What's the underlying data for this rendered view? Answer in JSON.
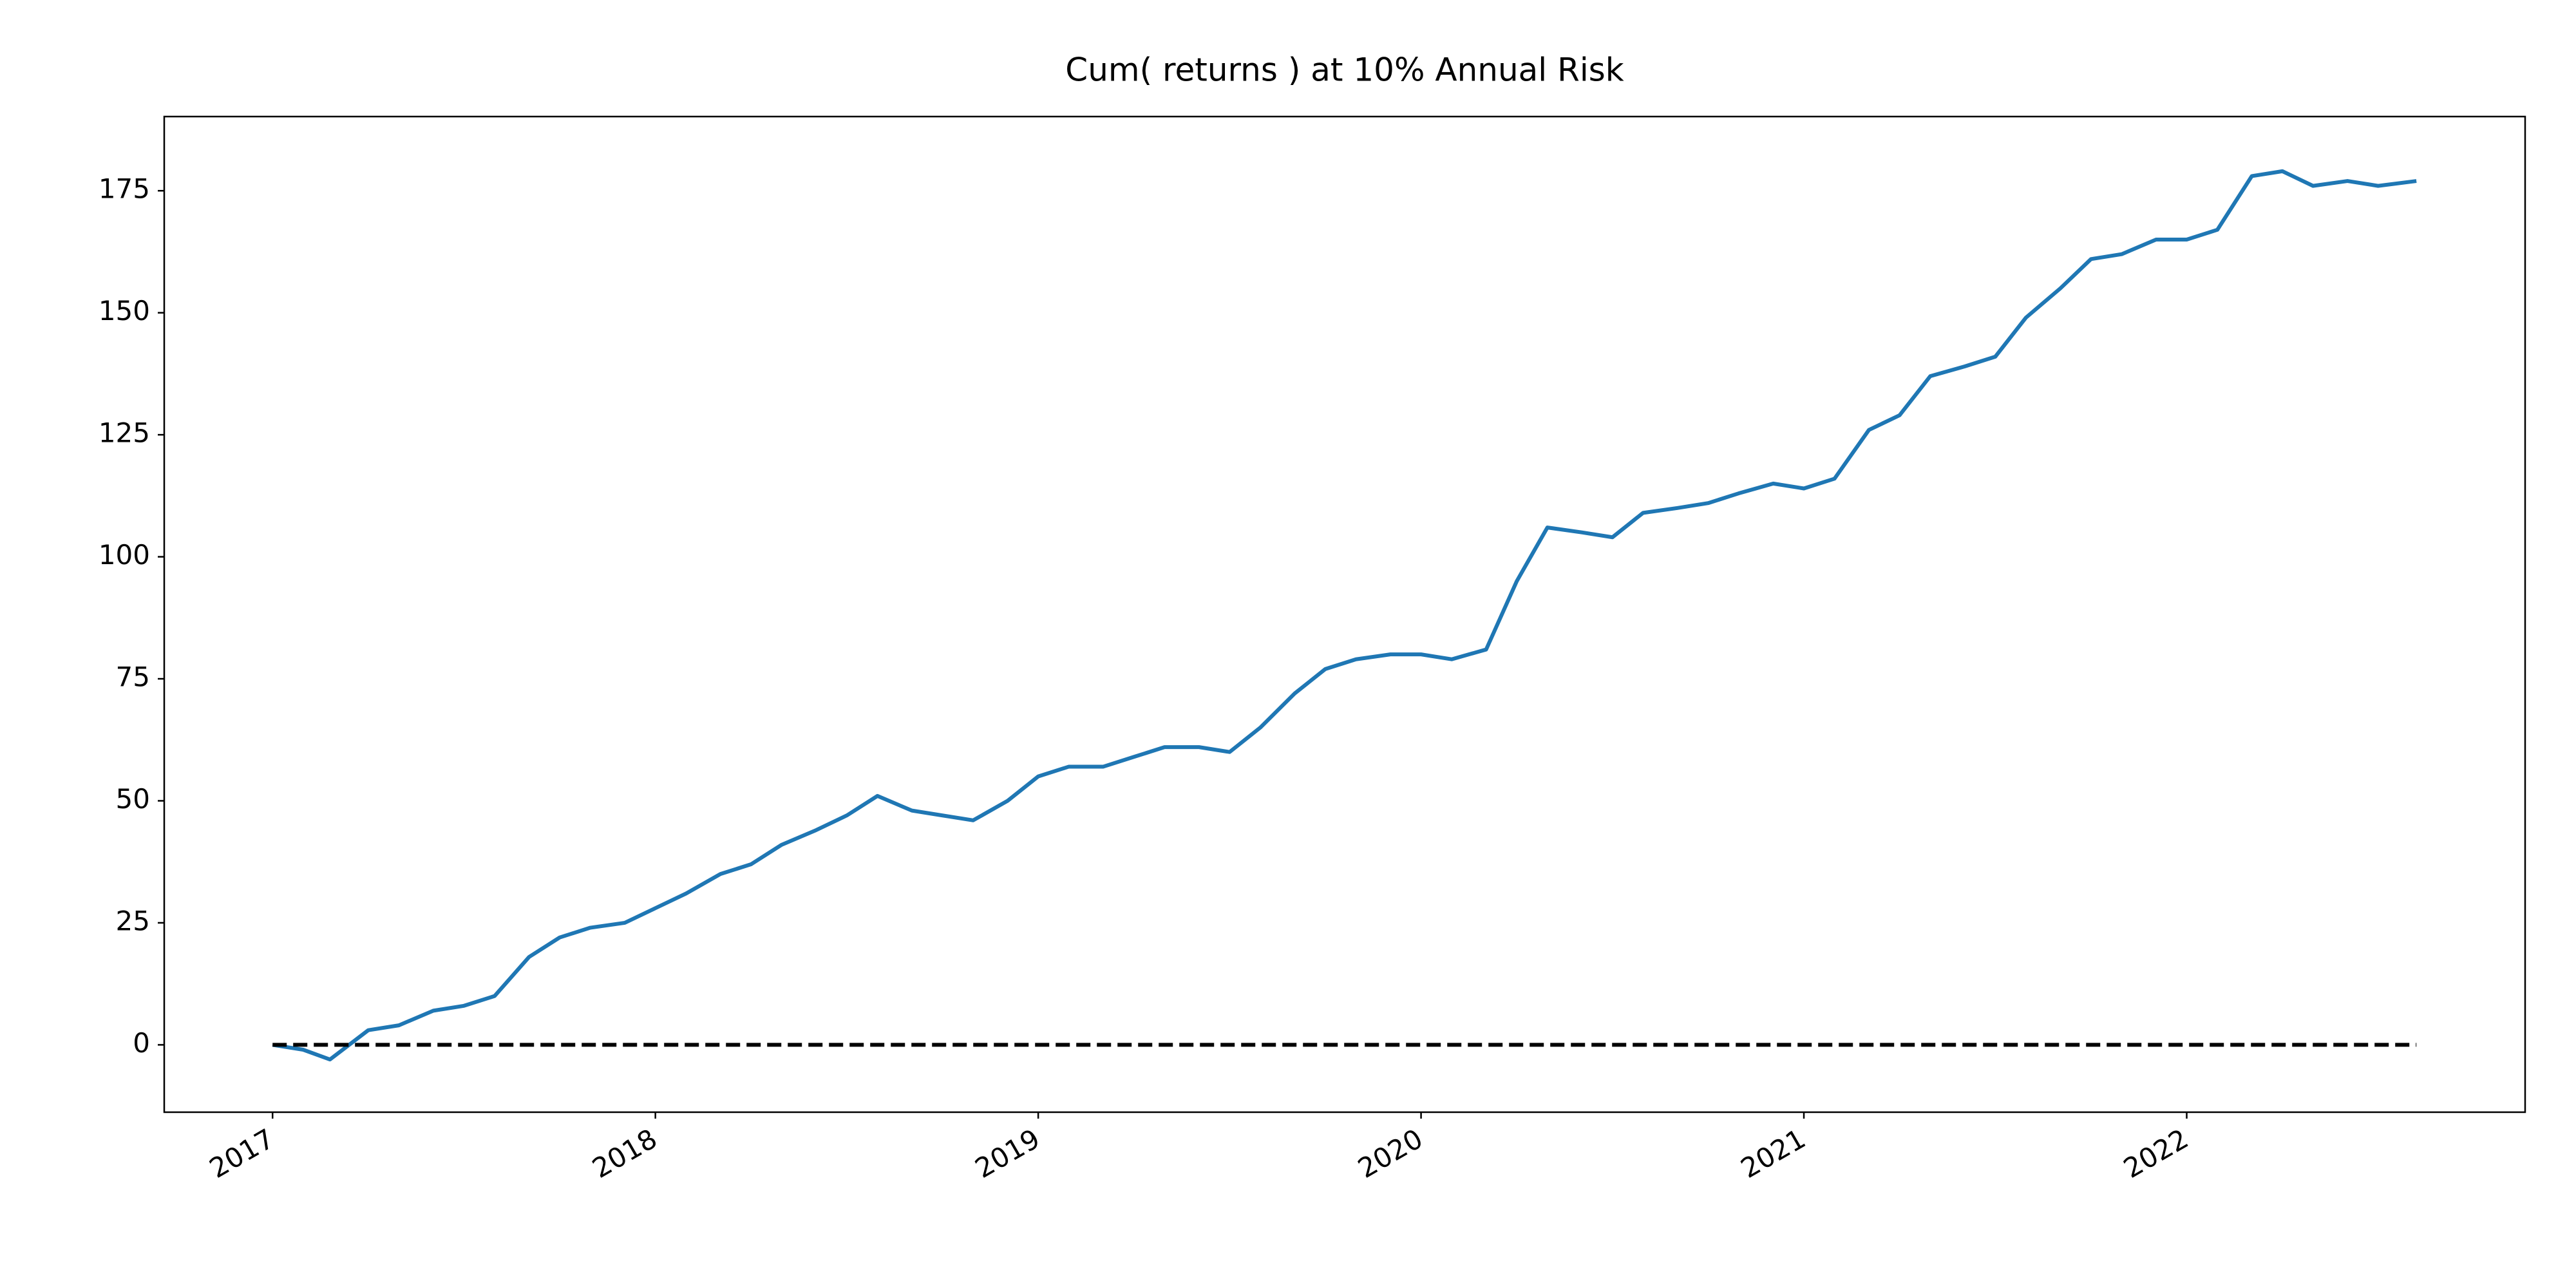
{
  "chart_data": {
    "type": "line",
    "title": "Cum( returns ) at 10% Annual Risk",
    "series": [
      {
        "color": "#1f77b4",
        "linestyle": "solid",
        "x": [
          2017.0,
          2017.08,
          2017.15,
          2017.25,
          2017.33,
          2017.42,
          2017.5,
          2017.58,
          2017.67,
          2017.75,
          2017.83,
          2017.92,
          2018.0,
          2018.08,
          2018.17,
          2018.25,
          2018.33,
          2018.42,
          2018.5,
          2018.58,
          2018.67,
          2018.75,
          2018.83,
          2018.92,
          2019.0,
          2019.08,
          2019.17,
          2019.25,
          2019.33,
          2019.42,
          2019.5,
          2019.58,
          2019.67,
          2019.75,
          2019.83,
          2019.92,
          2020.0,
          2020.08,
          2020.17,
          2020.25,
          2020.33,
          2020.42,
          2020.5,
          2020.58,
          2020.67,
          2020.75,
          2020.83,
          2020.92,
          2021.0,
          2021.08,
          2021.17,
          2021.25,
          2021.33,
          2021.42,
          2021.5,
          2021.58,
          2021.67,
          2021.75,
          2021.83,
          2021.92,
          2022.0,
          2022.08,
          2022.17,
          2022.25,
          2022.33,
          2022.42,
          2022.5,
          2022.6
        ],
        "values": [
          0,
          -1,
          -3,
          3,
          4,
          7,
          8,
          10,
          18,
          22,
          24,
          25,
          28,
          31,
          35,
          37,
          41,
          44,
          47,
          51,
          48,
          47,
          46,
          50,
          55,
          57,
          57,
          59,
          61,
          61,
          60,
          65,
          72,
          77,
          79,
          80,
          80,
          79,
          81,
          95,
          106,
          105,
          104,
          109,
          110,
          111,
          113,
          115,
          114,
          116,
          126,
          129,
          137,
          139,
          141,
          149,
          155,
          161,
          162,
          165,
          165,
          167,
          178,
          179,
          176,
          177,
          176,
          177
        ]
      },
      {
        "color": "#000000",
        "linestyle": "dashed",
        "x": [
          2017.0,
          2022.6
        ],
        "values": [
          0,
          0
        ]
      }
    ],
    "xlim": [
      2016.717,
      2022.884
    ],
    "xticks": [
      2017,
      2018,
      2019,
      2020,
      2021,
      2022
    ],
    "ylim": [
      -13.8,
      190.2
    ],
    "yticks": [
      0,
      25,
      50,
      75,
      100,
      125,
      150,
      175
    ],
    "grid": false
  }
}
